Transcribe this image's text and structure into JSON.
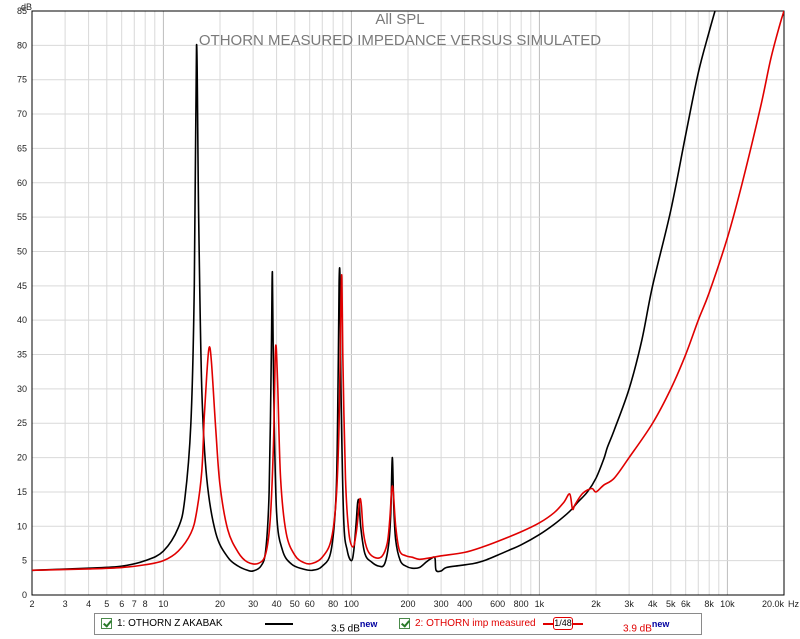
{
  "chart_data": {
    "type": "line",
    "title": "All SPL",
    "subtitle": "OTHORN MEASURED IMPEDANCE VERSUS SIMULATED",
    "xlabel": "",
    "ylabel": "",
    "x_unit": "Hz",
    "y_unit": "dB",
    "x_scale": "log",
    "xlim": [
      2,
      20000
    ],
    "ylim": [
      0,
      85
    ],
    "grid": true,
    "y_ticks": [
      "0",
      "5",
      "10",
      "15",
      "20",
      "25",
      "30",
      "35",
      "40",
      "45",
      "50",
      "55",
      "60",
      "65",
      "70",
      "75",
      "80",
      "85"
    ],
    "x_ticks": [
      {
        "v": 2,
        "label": "2"
      },
      {
        "v": 3,
        "label": "3"
      },
      {
        "v": 4,
        "label": "4"
      },
      {
        "v": 5,
        "label": "5"
      },
      {
        "v": 6,
        "label": "6"
      },
      {
        "v": 7,
        "label": "7"
      },
      {
        "v": 8,
        "label": "8"
      },
      {
        "v": 10,
        "label": "10"
      },
      {
        "v": 20,
        "label": "20"
      },
      {
        "v": 30,
        "label": "30"
      },
      {
        "v": 40,
        "label": "40"
      },
      {
        "v": 50,
        "label": "50"
      },
      {
        "v": 60,
        "label": "60"
      },
      {
        "v": 80,
        "label": "80"
      },
      {
        "v": 100,
        "label": "100"
      },
      {
        "v": 200,
        "label": "200"
      },
      {
        "v": 300,
        "label": "300"
      },
      {
        "v": 400,
        "label": "400"
      },
      {
        "v": 600,
        "label": "600"
      },
      {
        "v": 800,
        "label": "800"
      },
      {
        "v": 1000,
        "label": "1k"
      },
      {
        "v": 2000,
        "label": "2k"
      },
      {
        "v": 3000,
        "label": "3k"
      },
      {
        "v": 4000,
        "label": "4k"
      },
      {
        "v": 5000,
        "label": "5k"
      },
      {
        "v": 6000,
        "label": "6k"
      },
      {
        "v": 8000,
        "label": "8k"
      },
      {
        "v": 10000,
        "label": "10k"
      },
      {
        "v": 20000,
        "label": "20.0k"
      }
    ],
    "series": [
      {
        "name": "1: OTHORN Z AKABAK",
        "color": "#000000",
        "offset_label": "3.5 dB",
        "points": [
          [
            2,
            3.6
          ],
          [
            4,
            3.9
          ],
          [
            6,
            4.2
          ],
          [
            8,
            5.0
          ],
          [
            10,
            6.4
          ],
          [
            12,
            9.8
          ],
          [
            13,
            14
          ],
          [
            14,
            25
          ],
          [
            14.6,
            45
          ],
          [
            15,
            80
          ],
          [
            15.4,
            55
          ],
          [
            16,
            30
          ],
          [
            17,
            17
          ],
          [
            19,
            9
          ],
          [
            22,
            5.5
          ],
          [
            25,
            4.2
          ],
          [
            28,
            3.6
          ],
          [
            30,
            3.5
          ],
          [
            33,
            4.2
          ],
          [
            35,
            6.5
          ],
          [
            36.5,
            15
          ],
          [
            37.5,
            35
          ],
          [
            38,
            47
          ],
          [
            38.6,
            30
          ],
          [
            40,
            12
          ],
          [
            43,
            6.5
          ],
          [
            48,
            4.5
          ],
          [
            55,
            3.8
          ],
          [
            62,
            3.6
          ],
          [
            70,
            4.2
          ],
          [
            78,
            6.5
          ],
          [
            83,
            15
          ],
          [
            85,
            32
          ],
          [
            86,
            45.5
          ],
          [
            87,
            46
          ],
          [
            88,
            30
          ],
          [
            91,
            11
          ],
          [
            95,
            6.5
          ],
          [
            100,
            5
          ],
          [
            103,
            6.5
          ],
          [
            106,
            10.5
          ],
          [
            108,
            13.5
          ],
          [
            110,
            13.5
          ],
          [
            112,
            10
          ],
          [
            118,
            6
          ],
          [
            128,
            4.8
          ],
          [
            140,
            4.2
          ],
          [
            150,
            4.5
          ],
          [
            158,
            7.5
          ],
          [
            162,
            12
          ],
          [
            165,
            20
          ],
          [
            168,
            13
          ],
          [
            172,
            8
          ],
          [
            182,
            5
          ],
          [
            195,
            4.2
          ],
          [
            210,
            3.9
          ],
          [
            230,
            4.0
          ],
          [
            250,
            4.8
          ],
          [
            265,
            5.3
          ],
          [
            278,
            5.4
          ],
          [
            282,
            3.6
          ],
          [
            300,
            3.5
          ],
          [
            320,
            4.0
          ],
          [
            380,
            4.3
          ],
          [
            450,
            4.6
          ],
          [
            520,
            5.1
          ],
          [
            600,
            5.8
          ],
          [
            700,
            6.6
          ],
          [
            800,
            7.3
          ],
          [
            1000,
            8.8
          ],
          [
            1200,
            10.3
          ],
          [
            1400,
            11.8
          ],
          [
            1500,
            12.6
          ],
          [
            1600,
            13.5
          ],
          [
            1800,
            15
          ],
          [
            2000,
            17
          ],
          [
            2200,
            19.8
          ],
          [
            2300,
            21.5
          ],
          [
            2500,
            24
          ],
          [
            3000,
            30
          ],
          [
            3500,
            37
          ],
          [
            4000,
            45
          ],
          [
            5000,
            56
          ],
          [
            6000,
            67
          ],
          [
            7000,
            76
          ],
          [
            8000,
            82
          ],
          [
            8800,
            86
          ]
        ]
      },
      {
        "name": "2: OTHORN imp measured",
        "color": "#e00000",
        "smoothing": "1/48",
        "offset_label": "3.9 dB",
        "points": [
          [
            2,
            3.6
          ],
          [
            4,
            3.8
          ],
          [
            6,
            4.0
          ],
          [
            8,
            4.4
          ],
          [
            10,
            5.0
          ],
          [
            12,
            6.4
          ],
          [
            14,
            9
          ],
          [
            15,
            12
          ],
          [
            16,
            18
          ],
          [
            16.5,
            26
          ],
          [
            17,
            32
          ],
          [
            17.5,
            36
          ],
          [
            18,
            34
          ],
          [
            19,
            24
          ],
          [
            20,
            16
          ],
          [
            22,
            9.5
          ],
          [
            25,
            6.2
          ],
          [
            28,
            4.8
          ],
          [
            32,
            4.6
          ],
          [
            35,
            6.0
          ],
          [
            37,
            11
          ],
          [
            38.5,
            22
          ],
          [
            39.5,
            36
          ],
          [
            40.5,
            31
          ],
          [
            42,
            17
          ],
          [
            45,
            9
          ],
          [
            50,
            5.8
          ],
          [
            56,
            4.7
          ],
          [
            62,
            4.6
          ],
          [
            70,
            5.5
          ],
          [
            78,
            8
          ],
          [
            83,
            14
          ],
          [
            86,
            25
          ],
          [
            88,
            43
          ],
          [
            89,
            46
          ],
          [
            90,
            35
          ],
          [
            93,
            17
          ],
          [
            97,
            9
          ],
          [
            102,
            7
          ],
          [
            106,
            9
          ],
          [
            109,
            12
          ],
          [
            111,
            14
          ],
          [
            113,
            13
          ],
          [
            116,
            9
          ],
          [
            122,
            6.5
          ],
          [
            132,
            5.5
          ],
          [
            145,
            5.6
          ],
          [
            155,
            7.5
          ],
          [
            160,
            11
          ],
          [
            164,
            15.5
          ],
          [
            167,
            15
          ],
          [
            172,
            10
          ],
          [
            180,
            6.5
          ],
          [
            195,
            5.7
          ],
          [
            210,
            5.5
          ],
          [
            230,
            5.2
          ],
          [
            260,
            5.4
          ],
          [
            300,
            5.7
          ],
          [
            400,
            6.2
          ],
          [
            500,
            7
          ],
          [
            600,
            7.8
          ],
          [
            800,
            9.2
          ],
          [
            1000,
            10.5
          ],
          [
            1200,
            12
          ],
          [
            1350,
            13.5
          ],
          [
            1450,
            14.7
          ],
          [
            1500,
            12.5
          ],
          [
            1550,
            13.2
          ],
          [
            1700,
            14.8
          ],
          [
            1900,
            15.5
          ],
          [
            2000,
            15.0
          ],
          [
            2200,
            16
          ],
          [
            2500,
            17
          ],
          [
            3000,
            20
          ],
          [
            4000,
            25
          ],
          [
            5000,
            30
          ],
          [
            6000,
            35
          ],
          [
            7000,
            40
          ],
          [
            8000,
            44
          ],
          [
            10000,
            52
          ],
          [
            12000,
            60
          ],
          [
            15000,
            71
          ],
          [
            17000,
            78
          ],
          [
            19000,
            83
          ],
          [
            20000,
            85
          ]
        ]
      }
    ]
  },
  "legend": {
    "item1_label": "1: OTHORN Z AKABAK",
    "item1_offset": "3.5 dB",
    "item1_new": "new",
    "item2_label": "2: OTHORN imp measured",
    "item2_smoothing": "1/48",
    "item2_offset": "3.9 dB",
    "item2_new": "new"
  },
  "colors": {
    "series1": "#000000",
    "series2": "#e00000",
    "grid": "#d9d9d9",
    "axis": "#000000"
  }
}
